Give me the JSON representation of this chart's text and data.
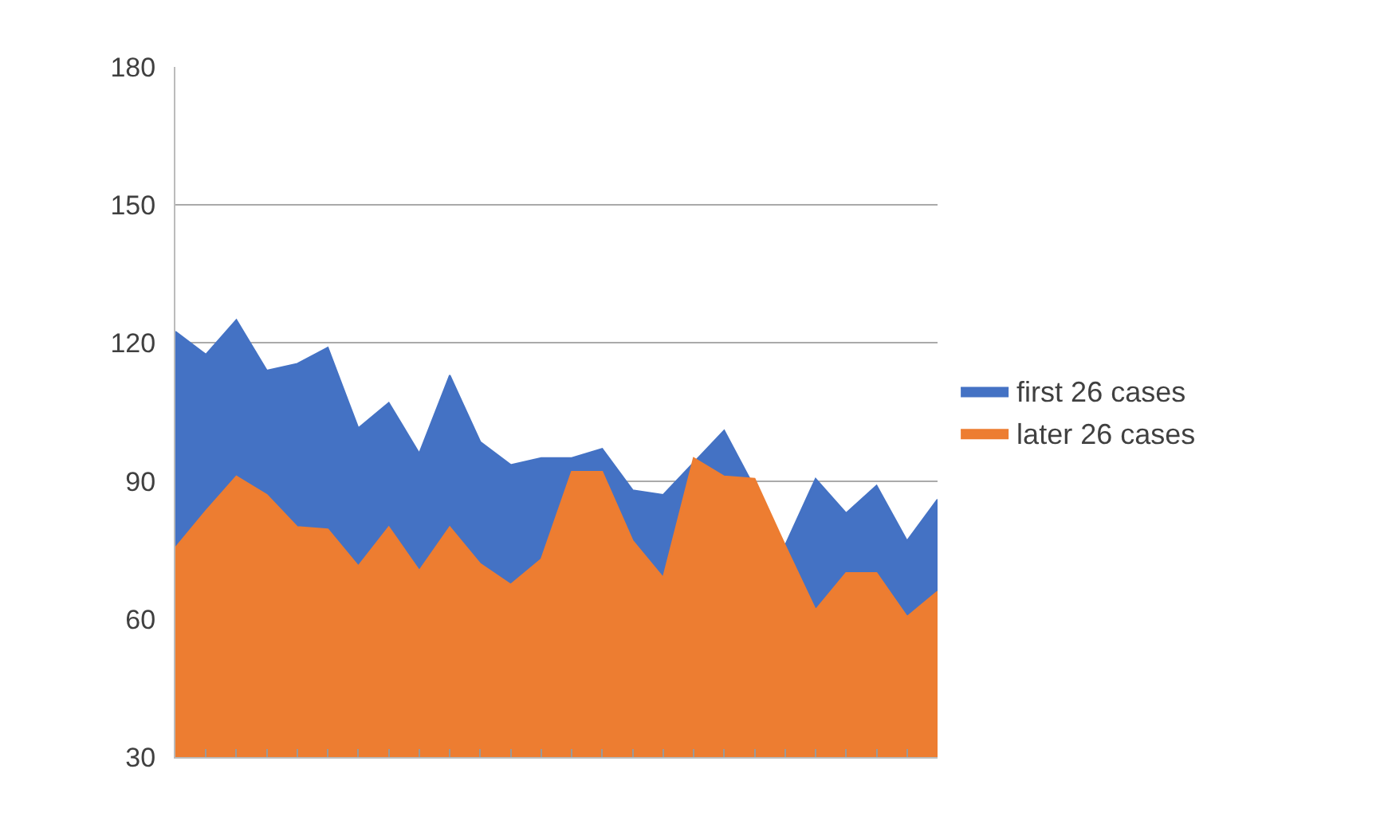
{
  "chart_data": {
    "type": "area",
    "categories": [
      null,
      null,
      null,
      null,
      null,
      null,
      null,
      null,
      null,
      null,
      null,
      null,
      null,
      null,
      null,
      null,
      null,
      null,
      null,
      null,
      null,
      null,
      null,
      null,
      null,
      null
    ],
    "series": [
      {
        "name": "first 26 cases",
        "color": "#4472c4",
        "values": [
          122.5,
          117.5,
          125,
          114,
          115.5,
          119,
          101.5,
          107,
          96,
          113,
          98.5,
          93.5,
          95,
          95,
          97,
          88,
          87,
          null,
          101,
          null,
          76,
          90.5,
          83,
          89,
          77,
          86
        ]
      },
      {
        "name": "later 26 cases",
        "color": "#ed7d31",
        "values": [
          75.5,
          83.5,
          91,
          87,
          80,
          79.5,
          71.5,
          80,
          70.5,
          80,
          72,
          67.5,
          73,
          92,
          92,
          77,
          69,
          95,
          91,
          90.5,
          76,
          62,
          70,
          70,
          60.5,
          66
        ]
      }
    ],
    "ylim": [
      30,
      180
    ],
    "yticks": [
      30,
      60,
      90,
      120,
      150,
      180
    ],
    "grid": "y",
    "legend": "right"
  }
}
